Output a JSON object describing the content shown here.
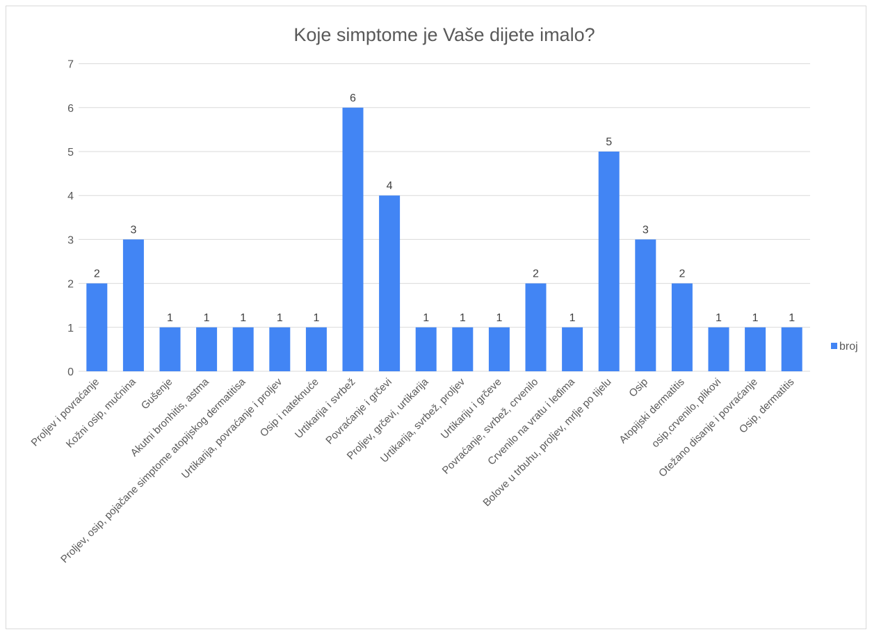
{
  "chart_data": {
    "type": "bar",
    "title": "Koje simptome je Vaše dijete imalo?",
    "categories": [
      "Proljev i povraćanje",
      "Kožni osip, mučnina",
      "Gušenje",
      "Akutni bronhitis, astma",
      "Proljev, osip, pojačane simptome atopijskog dermatitisa",
      "Urtikarija, povraćanje i proljev",
      "Osip i nateknuće",
      "Urtikarija i svrbež",
      "Povraćanje i grčevi",
      "Proljev, grčevi, urtikarija",
      "Urtikarija, svrbež, proljev",
      "Urtikariju i grčeve",
      "Povraćanje, svrbež, crvenilo",
      "Crvenilo na vratu i leđima",
      "Bolove u trbuhu, proljev, mrlje po tijelu",
      "Osip",
      "Atopijski dermatitis",
      "osip,crvenilo, plikovi",
      "Otežano disanje i povraćanje",
      "Osip, dermatitis"
    ],
    "series": [
      {
        "name": "broj",
        "values": [
          2,
          3,
          1,
          1,
          1,
          1,
          1,
          6,
          4,
          1,
          1,
          1,
          2,
          1,
          5,
          3,
          2,
          1,
          1,
          1
        ]
      }
    ],
    "ylim": [
      0,
      7
    ],
    "yticks": [
      0,
      1,
      2,
      3,
      4,
      5,
      6,
      7
    ],
    "grid": true,
    "legend": "right",
    "colors": {
      "bar": "#4285f4",
      "grid": "#d9d9d9",
      "text": "#595959"
    }
  }
}
